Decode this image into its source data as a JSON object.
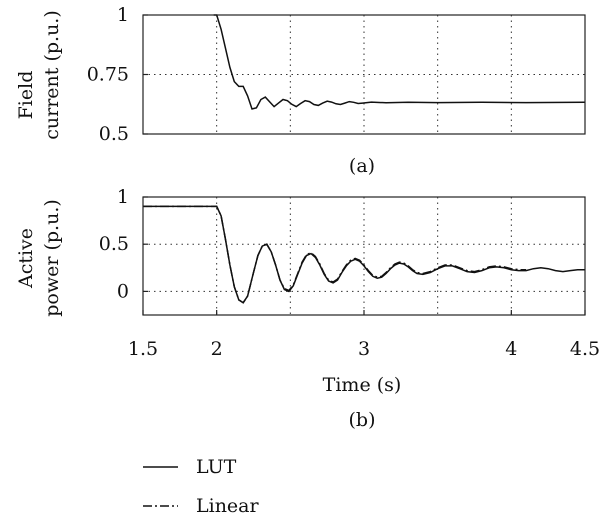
{
  "chart_data": [
    {
      "type": "line",
      "panel_label": "(a)",
      "ylabel": [
        "Field",
        "current (p.u.)"
      ],
      "xlim": [
        1.5,
        4.5
      ],
      "ylim": [
        0.5,
        1.0
      ],
      "yticks": [
        0.5,
        0.75,
        1.0
      ],
      "ytick_labels": [
        "0.5",
        "0.75",
        "1"
      ],
      "xgrid": [
        2.0,
        2.5,
        3.0,
        3.5,
        4.0
      ],
      "ygrid": [
        0.75
      ],
      "series": [
        {
          "x": [
            1.98,
            2.0,
            2.03,
            2.06,
            2.09,
            2.12,
            2.15,
            2.18,
            2.21,
            2.24,
            2.27,
            2.3,
            2.33,
            2.36,
            2.39,
            2.42,
            2.45,
            2.48,
            2.51,
            2.54,
            2.57,
            2.6,
            2.63,
            2.66,
            2.69,
            2.72,
            2.75,
            2.78,
            2.81,
            2.84,
            2.87,
            2.9,
            2.93,
            2.96,
            2.99,
            3.05,
            3.15,
            3.3,
            3.5,
            3.8,
            4.1,
            4.5
          ],
          "y": [
            1.0,
            1.0,
            0.94,
            0.86,
            0.78,
            0.72,
            0.7,
            0.7,
            0.66,
            0.605,
            0.61,
            0.645,
            0.655,
            0.635,
            0.615,
            0.63,
            0.645,
            0.64,
            0.625,
            0.615,
            0.628,
            0.64,
            0.636,
            0.624,
            0.62,
            0.63,
            0.638,
            0.634,
            0.627,
            0.624,
            0.63,
            0.636,
            0.633,
            0.628,
            0.63,
            0.634,
            0.631,
            0.633,
            0.632,
            0.633,
            0.632,
            0.633
          ]
        }
      ]
    },
    {
      "type": "line",
      "panel_label": "(b)",
      "ylabel": [
        "Active",
        "power (p.u.)"
      ],
      "xlabel": "Time (s)",
      "xlim": [
        1.5,
        4.5
      ],
      "ylim": [
        -0.25,
        1.0
      ],
      "xticks": [
        1.5,
        2,
        3,
        4,
        4.5
      ],
      "xtick_labels": [
        "1.5",
        "2",
        "3",
        "4",
        "4.5"
      ],
      "yticks": [
        0,
        0.5,
        1
      ],
      "ytick_labels": [
        "0",
        "0.5",
        "1"
      ],
      "xgrid": [
        2.0,
        2.5,
        3.0,
        3.5,
        4.0
      ],
      "ygrid": [
        0,
        0.5
      ],
      "legend_position": "bottom-left",
      "series": [
        {
          "name": "LUT",
          "x": [
            1.5,
            2.0,
            2.03,
            2.06,
            2.09,
            2.12,
            2.15,
            2.18,
            2.21,
            2.25,
            2.28,
            2.31,
            2.34,
            2.37,
            2.4,
            2.43,
            2.46,
            2.49,
            2.52,
            2.55,
            2.58,
            2.61,
            2.64,
            2.67,
            2.7,
            2.73,
            2.76,
            2.79,
            2.82,
            2.85,
            2.88,
            2.91,
            2.94,
            2.97,
            3.0,
            3.03,
            3.06,
            3.09,
            3.12,
            3.15,
            3.18,
            3.21,
            3.24,
            3.27,
            3.3,
            3.33,
            3.36,
            3.4,
            3.45,
            3.5,
            3.55,
            3.6,
            3.65,
            3.7,
            3.75,
            3.8,
            3.85,
            3.9,
            3.95,
            4.0,
            4.05,
            4.1,
            4.15,
            4.2,
            4.25,
            4.3,
            4.35,
            4.4,
            4.45,
            4.5
          ],
          "y": [
            0.9,
            0.9,
            0.8,
            0.55,
            0.28,
            0.05,
            -0.09,
            -0.12,
            -0.05,
            0.2,
            0.38,
            0.48,
            0.5,
            0.42,
            0.28,
            0.12,
            0.02,
            0.0,
            0.06,
            0.18,
            0.3,
            0.38,
            0.4,
            0.36,
            0.28,
            0.18,
            0.11,
            0.09,
            0.12,
            0.2,
            0.27,
            0.32,
            0.34,
            0.32,
            0.27,
            0.21,
            0.16,
            0.14,
            0.15,
            0.19,
            0.24,
            0.28,
            0.3,
            0.29,
            0.26,
            0.22,
            0.19,
            0.18,
            0.2,
            0.24,
            0.27,
            0.27,
            0.24,
            0.21,
            0.2,
            0.22,
            0.25,
            0.26,
            0.25,
            0.23,
            0.22,
            0.22,
            0.24,
            0.25,
            0.24,
            0.22,
            0.21,
            0.22,
            0.23,
            0.23
          ]
        },
        {
          "name": "Linear",
          "x": [
            1.5,
            2.0,
            2.03,
            2.06,
            2.09,
            2.12,
            2.15,
            2.18,
            2.21,
            2.25,
            2.28,
            2.31,
            2.34,
            2.37,
            2.4,
            2.43,
            2.46,
            2.49,
            2.52,
            2.55,
            2.58,
            2.61,
            2.64,
            2.67,
            2.7,
            2.73,
            2.76,
            2.79,
            2.82,
            2.85,
            2.88,
            2.91,
            2.94,
            2.97,
            3.0,
            3.03,
            3.06,
            3.09,
            3.12,
            3.15,
            3.18,
            3.21,
            3.24,
            3.27,
            3.3,
            3.33,
            3.36,
            3.4,
            3.45,
            3.5,
            3.55,
            3.6,
            3.65,
            3.7,
            3.75,
            3.8,
            3.85,
            3.9,
            3.95,
            4.0,
            4.05,
            4.1
          ],
          "y": [
            0.9,
            0.9,
            0.8,
            0.55,
            0.28,
            0.05,
            -0.09,
            -0.12,
            -0.05,
            0.2,
            0.38,
            0.48,
            0.5,
            0.42,
            0.28,
            0.12,
            0.03,
            0.01,
            0.07,
            0.19,
            0.31,
            0.39,
            0.41,
            0.37,
            0.29,
            0.19,
            0.12,
            0.1,
            0.13,
            0.21,
            0.28,
            0.33,
            0.35,
            0.33,
            0.28,
            0.22,
            0.17,
            0.15,
            0.16,
            0.2,
            0.25,
            0.29,
            0.31,
            0.3,
            0.27,
            0.23,
            0.2,
            0.19,
            0.21,
            0.25,
            0.28,
            0.28,
            0.25,
            0.22,
            0.21,
            0.23,
            0.26,
            0.27,
            0.26,
            0.24,
            0.23,
            0.23
          ]
        }
      ]
    }
  ]
}
